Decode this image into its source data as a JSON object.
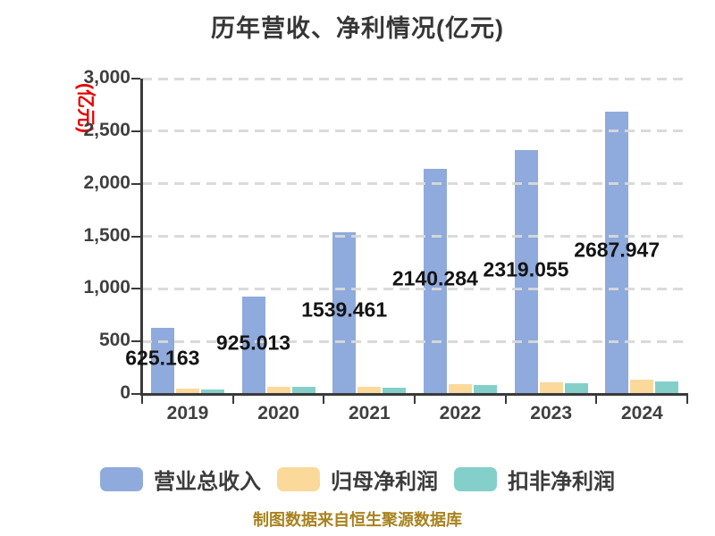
{
  "title": {
    "text": "历年营收、净利情况(亿元)"
  },
  "y_axis": {
    "unit_label": "(亿元)",
    "tick_labels": [
      "0",
      "500",
      "1,000",
      "1,500",
      "2,000",
      "2,500",
      "3,000"
    ],
    "min": 0,
    "max": 3000,
    "step": 500
  },
  "x_axis": {
    "tick_labels": [
      "2019",
      "2020",
      "2021",
      "2022",
      "2023",
      "2024"
    ]
  },
  "chart_data": {
    "type": "bar",
    "title": "历年营收、净利情况(亿元)",
    "categories": [
      "2019",
      "2020",
      "2021",
      "2022",
      "2023",
      "2024"
    ],
    "series": [
      {
        "name": "营业总收入",
        "key": "revenue",
        "color": "#8FAADC",
        "values": [
          625.163,
          925.013,
          1539.461,
          2140.284,
          2319.055,
          2687.947
        ],
        "data_labels": [
          "625.163",
          "925.013",
          "1539.461",
          "2140.284",
          "2319.055",
          "2687.947"
        ],
        "labels_shown": true
      },
      {
        "name": "归母净利润",
        "key": "net-profit",
        "color": "#FBD99B",
        "values": [
          47,
          72,
          71,
          92,
          110,
          134
        ],
        "estimated": true,
        "labels_shown": false
      },
      {
        "name": "扣非净利润",
        "key": "net-profit-excl",
        "color": "#85CFCB",
        "values": [
          42,
          64,
          60,
          84,
          101,
          116
        ],
        "estimated": true,
        "labels_shown": false
      }
    ],
    "ylim": [
      0,
      3000
    ],
    "grid": "horizontal-dashed",
    "legend_position": "bottom"
  },
  "caption": {
    "text": "制图数据来自恒生聚源数据库"
  },
  "colors": {
    "background": "#FFFFFF",
    "bar_revenue": "#8FAADC",
    "bar_net_profit": "#FBD99B",
    "bar_net_profit_excl": "#85CFCB",
    "grid": "#D9D9D9",
    "axis": "#3A3A3A",
    "tick_text": "#3F3F3F",
    "data_label_text": "#141414",
    "unit_label_text": "#E60000",
    "caption_text": "#A8821E"
  }
}
